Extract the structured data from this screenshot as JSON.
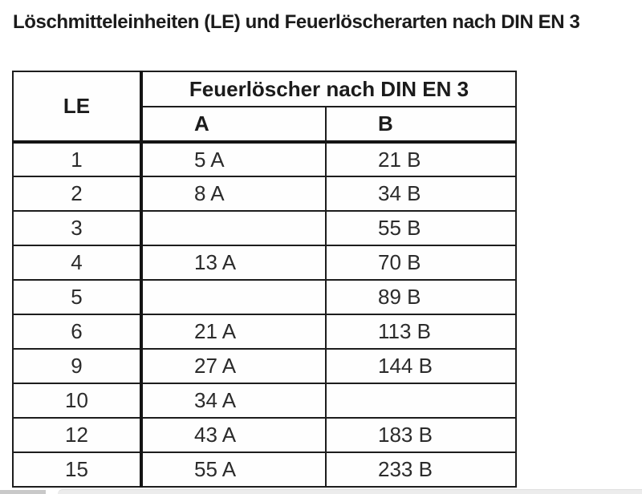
{
  "title": "Löschmitteleinheiten (LE) und Feuerlöscherarten nach DIN EN 3",
  "table": {
    "le_header": "LE",
    "group_header": "Feuerlöscher nach DIN EN 3",
    "col_a_header": "A",
    "col_b_header": "B",
    "rows": [
      {
        "le": "1",
        "a": "5 A",
        "b": "21 B"
      },
      {
        "le": "2",
        "a": "8 A",
        "b": "34 B"
      },
      {
        "le": "3",
        "a": "",
        "b": "55 B"
      },
      {
        "le": "4",
        "a": "13 A",
        "b": "70 B"
      },
      {
        "le": "5",
        "a": "",
        "b": "89 B"
      },
      {
        "le": "6",
        "a": "21 A",
        "b": "113 B"
      },
      {
        "le": "9",
        "a": "27 A",
        "b": "144 B"
      },
      {
        "le": "10",
        "a": "34 A",
        "b": ""
      },
      {
        "le": "12",
        "a": "43 A",
        "b": "183 B"
      },
      {
        "le": "15",
        "a": "55 A",
        "b": "233 B"
      }
    ]
  },
  "colors": {
    "text": "#2b2b2b",
    "heading_text": "#1b1b1b",
    "table_line": "#1d1d1d",
    "page_background": "#ffffff",
    "bottom_panel": "#ececec",
    "bottom_left_strip": "#c9c9c9"
  }
}
